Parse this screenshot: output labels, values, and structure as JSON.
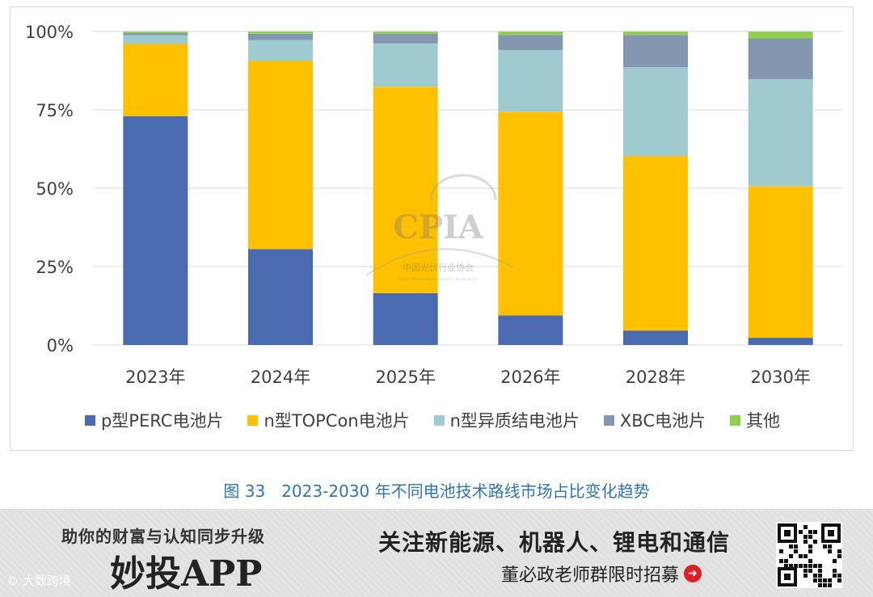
{
  "chart_data": {
    "type": "bar",
    "stacked": true,
    "categories": [
      "2023年",
      "2024年",
      "2025年",
      "2026年",
      "2028年",
      "2030年"
    ],
    "series": [
      {
        "name": "p型PERC电池片",
        "color": "#4a6bb0",
        "values": [
          73.0,
          30.6,
          16.5,
          9.4,
          4.6,
          2.3
        ]
      },
      {
        "name": "n型TOPCon电池片",
        "color": "#ffc000",
        "values": [
          23.0,
          60.0,
          65.9,
          65.0,
          55.7,
          48.3
        ]
      },
      {
        "name": "n型异质结电池片",
        "color": "#9fcbd0",
        "values": [
          2.8,
          6.7,
          13.8,
          19.7,
          28.3,
          34.2
        ]
      },
      {
        "name": "XBC电池片",
        "color": "#8497b0",
        "values": [
          0.7,
          2.0,
          3.1,
          4.8,
          10.3,
          13.0
        ]
      },
      {
        "name": "其他",
        "color": "#8fd14f",
        "values": [
          0.5,
          0.7,
          0.7,
          1.1,
          1.1,
          2.2
        ]
      }
    ],
    "yticks": [
      "0%",
      "25%",
      "50%",
      "75%",
      "100%"
    ],
    "ylim": [
      0,
      100
    ],
    "legend": "bottom",
    "grid": true
  },
  "watermark": {
    "logo": "CPIA",
    "org": "中国光伏行业协会",
    "org_en": "China Photovoltaic Industry Association"
  },
  "caption": "图 33　2023-2030 年不同电池技术路线市场占比变化趋势",
  "banner": {
    "tagline": "助你的财富与认知同步升级",
    "app": "妙投APP",
    "headline": "关注新能源、机器人、锂电和通信",
    "sub": "董必政老师群限时招募",
    "watermark": "© 大数跨境"
  }
}
